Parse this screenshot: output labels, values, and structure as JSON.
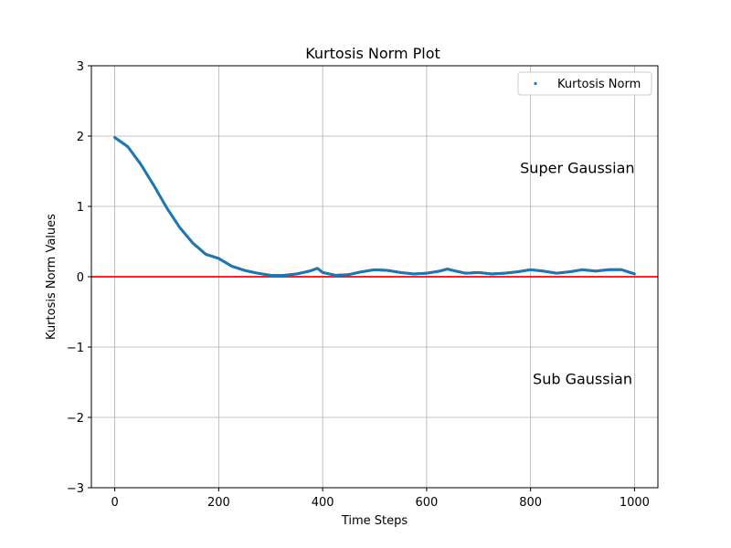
{
  "chart_data": {
    "type": "scatter",
    "title": "Kurtosis Norm Plot",
    "xlabel": "Time Steps",
    "ylabel": "Kurtosis Norm Values",
    "xlim": [
      -45,
      1045
    ],
    "ylim": [
      -3,
      3
    ],
    "xticks": [
      0,
      200,
      400,
      600,
      800,
      1000
    ],
    "yticks": [
      -3,
      -2,
      -1,
      0,
      1,
      2,
      3
    ],
    "xtick_labels": [
      "0",
      "200",
      "400",
      "600",
      "800",
      "1000"
    ],
    "ytick_labels": [
      "−3",
      "−2",
      "−1",
      "0",
      "1",
      "2",
      "3"
    ],
    "grid": true,
    "legend_position": "top-right",
    "series": [
      {
        "name": "Kurtosis Norm",
        "color": "#1f77b4",
        "marker": "dot",
        "n_points": 1000,
        "x": [
          0,
          25,
          50,
          75,
          100,
          125,
          150,
          175,
          200,
          225,
          250,
          275,
          300,
          325,
          350,
          375,
          390,
          400,
          425,
          450,
          475,
          500,
          525,
          550,
          575,
          600,
          625,
          640,
          650,
          675,
          700,
          725,
          750,
          775,
          800,
          825,
          850,
          875,
          900,
          925,
          950,
          975,
          1000
        ],
        "y": [
          1.98,
          1.85,
          1.6,
          1.3,
          0.98,
          0.7,
          0.48,
          0.32,
          0.26,
          0.15,
          0.09,
          0.05,
          0.02,
          0.02,
          0.04,
          0.08,
          0.12,
          0.06,
          0.02,
          0.03,
          0.07,
          0.1,
          0.09,
          0.06,
          0.04,
          0.05,
          0.08,
          0.11,
          0.09,
          0.05,
          0.06,
          0.04,
          0.05,
          0.07,
          0.1,
          0.08,
          0.05,
          0.07,
          0.1,
          0.08,
          0.1,
          0.1,
          0.04
        ]
      }
    ],
    "hlines": [
      {
        "y": 0,
        "color": "#ff0000"
      }
    ],
    "annotations": [
      {
        "text": "Super Gaussian",
        "x": 890,
        "y": 1.55
      },
      {
        "text": "Sub Gaussian",
        "x": 900,
        "y": -1.45
      }
    ]
  }
}
